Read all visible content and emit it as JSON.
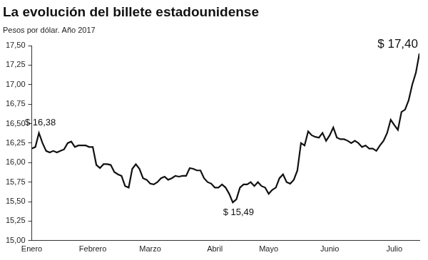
{
  "chart_data": {
    "type": "line",
    "title": "La evolución del billete estadounidense",
    "subtitle": "Pesos por dólar. Año 2017",
    "color": "#111111",
    "grid": false,
    "categories": [
      "Enero",
      null,
      null,
      null,
      null,
      null,
      null,
      null,
      null,
      null,
      null,
      null,
      null,
      null,
      null,
      null,
      null,
      "Febrero",
      null,
      null,
      null,
      null,
      null,
      null,
      null,
      null,
      null,
      null,
      null,
      null,
      null,
      null,
      null,
      "Marzo",
      null,
      null,
      null,
      null,
      null,
      null,
      null,
      null,
      null,
      null,
      null,
      null,
      null,
      null,
      null,
      null,
      null,
      "Abril",
      null,
      null,
      null,
      null,
      null,
      null,
      null,
      null,
      null,
      null,
      null,
      null,
      null,
      null,
      "Mayo",
      null,
      null,
      null,
      null,
      null,
      null,
      null,
      null,
      null,
      null,
      null,
      null,
      null,
      null,
      null,
      null,
      "Junio",
      null,
      null,
      null,
      null,
      null,
      null,
      null,
      null,
      null,
      null,
      null,
      null,
      null,
      null,
      null,
      null,
      null,
      "Julio",
      null,
      null,
      null,
      null,
      null,
      null,
      null
    ],
    "values": [
      16.18,
      16.2,
      16.38,
      16.25,
      16.15,
      16.13,
      16.15,
      16.13,
      16.15,
      16.17,
      16.25,
      16.27,
      16.2,
      16.22,
      16.22,
      16.22,
      16.2,
      16.2,
      15.97,
      15.93,
      15.98,
      15.98,
      15.97,
      15.88,
      15.85,
      15.83,
      15.7,
      15.68,
      15.92,
      15.98,
      15.92,
      15.8,
      15.78,
      15.73,
      15.72,
      15.75,
      15.8,
      15.82,
      15.78,
      15.8,
      15.83,
      15.82,
      15.83,
      15.83,
      15.93,
      15.92,
      15.9,
      15.9,
      15.8,
      15.75,
      15.73,
      15.68,
      15.68,
      15.72,
      15.68,
      15.6,
      15.49,
      15.53,
      15.68,
      15.72,
      15.72,
      15.75,
      15.7,
      15.75,
      15.7,
      15.68,
      15.6,
      15.65,
      15.68,
      15.8,
      15.85,
      15.75,
      15.73,
      15.78,
      15.9,
      16.25,
      16.22,
      16.4,
      16.35,
      16.33,
      16.32,
      16.38,
      16.28,
      16.35,
      16.45,
      16.32,
      16.3,
      16.3,
      16.28,
      16.25,
      16.28,
      16.25,
      16.2,
      16.22,
      16.18,
      16.18,
      16.15,
      16.22,
      16.28,
      16.38,
      16.55,
      16.48,
      16.42,
      16.65,
      16.68,
      16.8,
      17.0,
      17.15,
      17.4
    ],
    "annotations": [
      {
        "text": "$ 16,38",
        "index": 2
      },
      {
        "text": "$ 15,49",
        "index": 56
      },
      {
        "text": "$ 17,40",
        "index": 108
      }
    ],
    "ylim": [
      15,
      17.5
    ],
    "yticks": [
      {
        "value": 15,
        "label": "15,00"
      },
      {
        "value": 15.25,
        "label": "15,25"
      },
      {
        "value": 15.5,
        "label": "15,50"
      },
      {
        "value": 15.75,
        "label": "15,75"
      },
      {
        "value": 16,
        "label": "16,00"
      },
      {
        "value": 16.25,
        "label": "16,25"
      },
      {
        "value": 16.5,
        "label": "16,50"
      },
      {
        "value": 16.75,
        "label": "16,75"
      },
      {
        "value": 17,
        "label": "17,00"
      },
      {
        "value": 17.25,
        "label": "17,25"
      },
      {
        "value": 17.5,
        "label": "17,50"
      }
    ]
  }
}
